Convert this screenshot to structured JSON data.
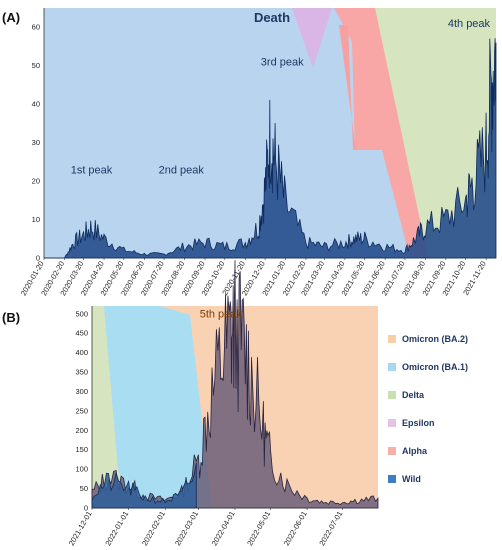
{
  "chart_data": [
    {
      "panel": "(A)",
      "type": "area",
      "title": "Death",
      "ylim": [
        0,
        65
      ],
      "yticks": [
        0,
        10,
        20,
        30,
        40,
        50,
        60
      ],
      "x_tick_labels": [
        "2020-01-20",
        "2020-02-20",
        "2020-03-20",
        "2020-04-20",
        "2020-05-20",
        "2020-06-20",
        "2020-07-20",
        "2020-08-20",
        "2020-09-20",
        "2020-10-20",
        "2020-11-20",
        "2020-12-20",
        "2021-01-20",
        "2021-02-20",
        "2021-03-20",
        "2021-04-20",
        "2021-05-20",
        "2021-06-20",
        "2021-07-20",
        "2021-08-20",
        "2021-09-20",
        "2021-10-20",
        "2021-11-20"
      ],
      "annotations": [
        {
          "text": "1st peak",
          "x": "2020-04-01",
          "y": 22
        },
        {
          "text": "2nd peak",
          "x": "2020-08-15",
          "y": 22
        },
        {
          "text": "3rd peak",
          "x": "2021-01-15",
          "y": 50
        },
        {
          "text": "4th peak",
          "x": "2021-10-25",
          "y": 60
        }
      ],
      "series": [
        {
          "values_x": [
            "2020-01-20",
            "2020-02-20",
            "2020-03-05",
            "2020-03-20",
            "2020-04-01",
            "2020-04-20",
            "2020-05-20",
            "2020-06-20",
            "2020-07-20",
            "2020-08-20",
            "2020-09-20",
            "2020-10-20",
            "2020-11-20",
            "2020-12-10",
            "2020-12-20",
            "2020-12-28",
            "2021-01-05",
            "2021-01-20",
            "2021-02-20",
            "2021-03-20",
            "2021-04-20",
            "2021-05-05",
            "2021-05-20",
            "2021-06-20",
            "2021-07-20",
            "2021-08-05",
            "2021-08-20",
            "2021-09-20",
            "2021-10-20",
            "2021-11-01",
            "2021-11-20",
            "2021-11-28",
            "2021-12-05"
          ],
          "values_y": [
            0,
            0,
            4,
            6,
            8,
            5,
            2,
            1,
            1,
            3,
            4,
            3,
            4,
            8,
            18,
            32,
            25,
            14,
            4,
            3,
            4,
            5,
            5,
            3,
            2,
            5,
            8,
            10,
            15,
            20,
            28,
            45,
            56
          ]
        }
      ]
    },
    {
      "panel": "(B)",
      "type": "area",
      "ylim": [
        0,
        520
      ],
      "yticks": [
        0,
        50,
        100,
        150,
        200,
        250,
        300,
        350,
        400,
        450,
        500
      ],
      "x_tick_labels": [
        "2021-12-01",
        "2022-01-01",
        "2022-02-01",
        "2022-03-01",
        "2022-04-01",
        "2022-05-01",
        "2022-06-01",
        "2022-07-01"
      ],
      "annotations": [
        {
          "text": "5th peak",
          "x": "2022-03-20",
          "y": 490
        }
      ],
      "series": [
        {
          "values_x": [
            "2021-12-01",
            "2021-12-15",
            "2022-01-01",
            "2022-01-15",
            "2022-02-01",
            "2022-02-15",
            "2022-03-01",
            "2022-03-10",
            "2022-03-20",
            "2022-03-28",
            "2022-04-01",
            "2022-04-08",
            "2022-04-15",
            "2022-04-25",
            "2022-05-01",
            "2022-05-15",
            "2022-06-01",
            "2022-06-15",
            "2022-07-01",
            "2022-07-15",
            "2022-07-31"
          ],
          "values_y": [
            40,
            80,
            60,
            30,
            20,
            40,
            120,
            260,
            380,
            440,
            460,
            420,
            340,
            200,
            130,
            60,
            25,
            15,
            15,
            20,
            25
          ]
        }
      ],
      "legend": [
        "Omicron (BA.2)",
        "Omicron (BA.1)",
        "Delta",
        "Epsilon",
        "Alpha",
        "Wild"
      ],
      "legend_colors": [
        "#f9cfa8",
        "#a8d8f0",
        "#c8dfb0",
        "#e3c3e6",
        "#f7b0a8",
        "#3d7fc1"
      ],
      "variant_colors": {
        "wild": "#b8d4ef",
        "epsilon": "#d9b6e6",
        "alpha": "#f9a6a6",
        "delta": "#d6e4c0",
        "omicron_ba1": "#a8ddf2",
        "omicron_ba2": "#f9d2b4",
        "cases_fill": "#274e8c",
        "cases_line": "#0f2b5c"
      }
    }
  ]
}
